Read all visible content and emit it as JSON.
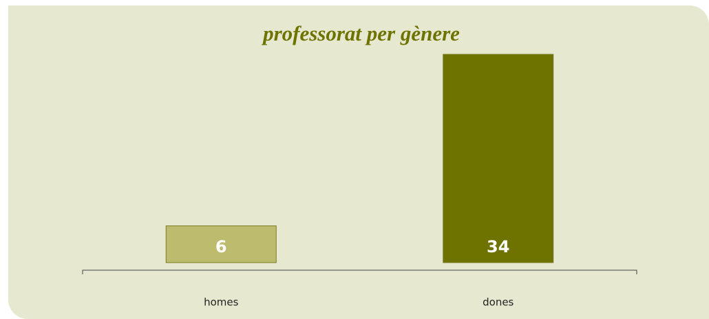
{
  "chart_data": {
    "type": "bar",
    "title": "professorat per gènere",
    "categories": [
      "homes",
      "dones"
    ],
    "values": [
      6,
      34
    ],
    "colors": [
      "#bdbc6e",
      "#6e7300"
    ]
  }
}
